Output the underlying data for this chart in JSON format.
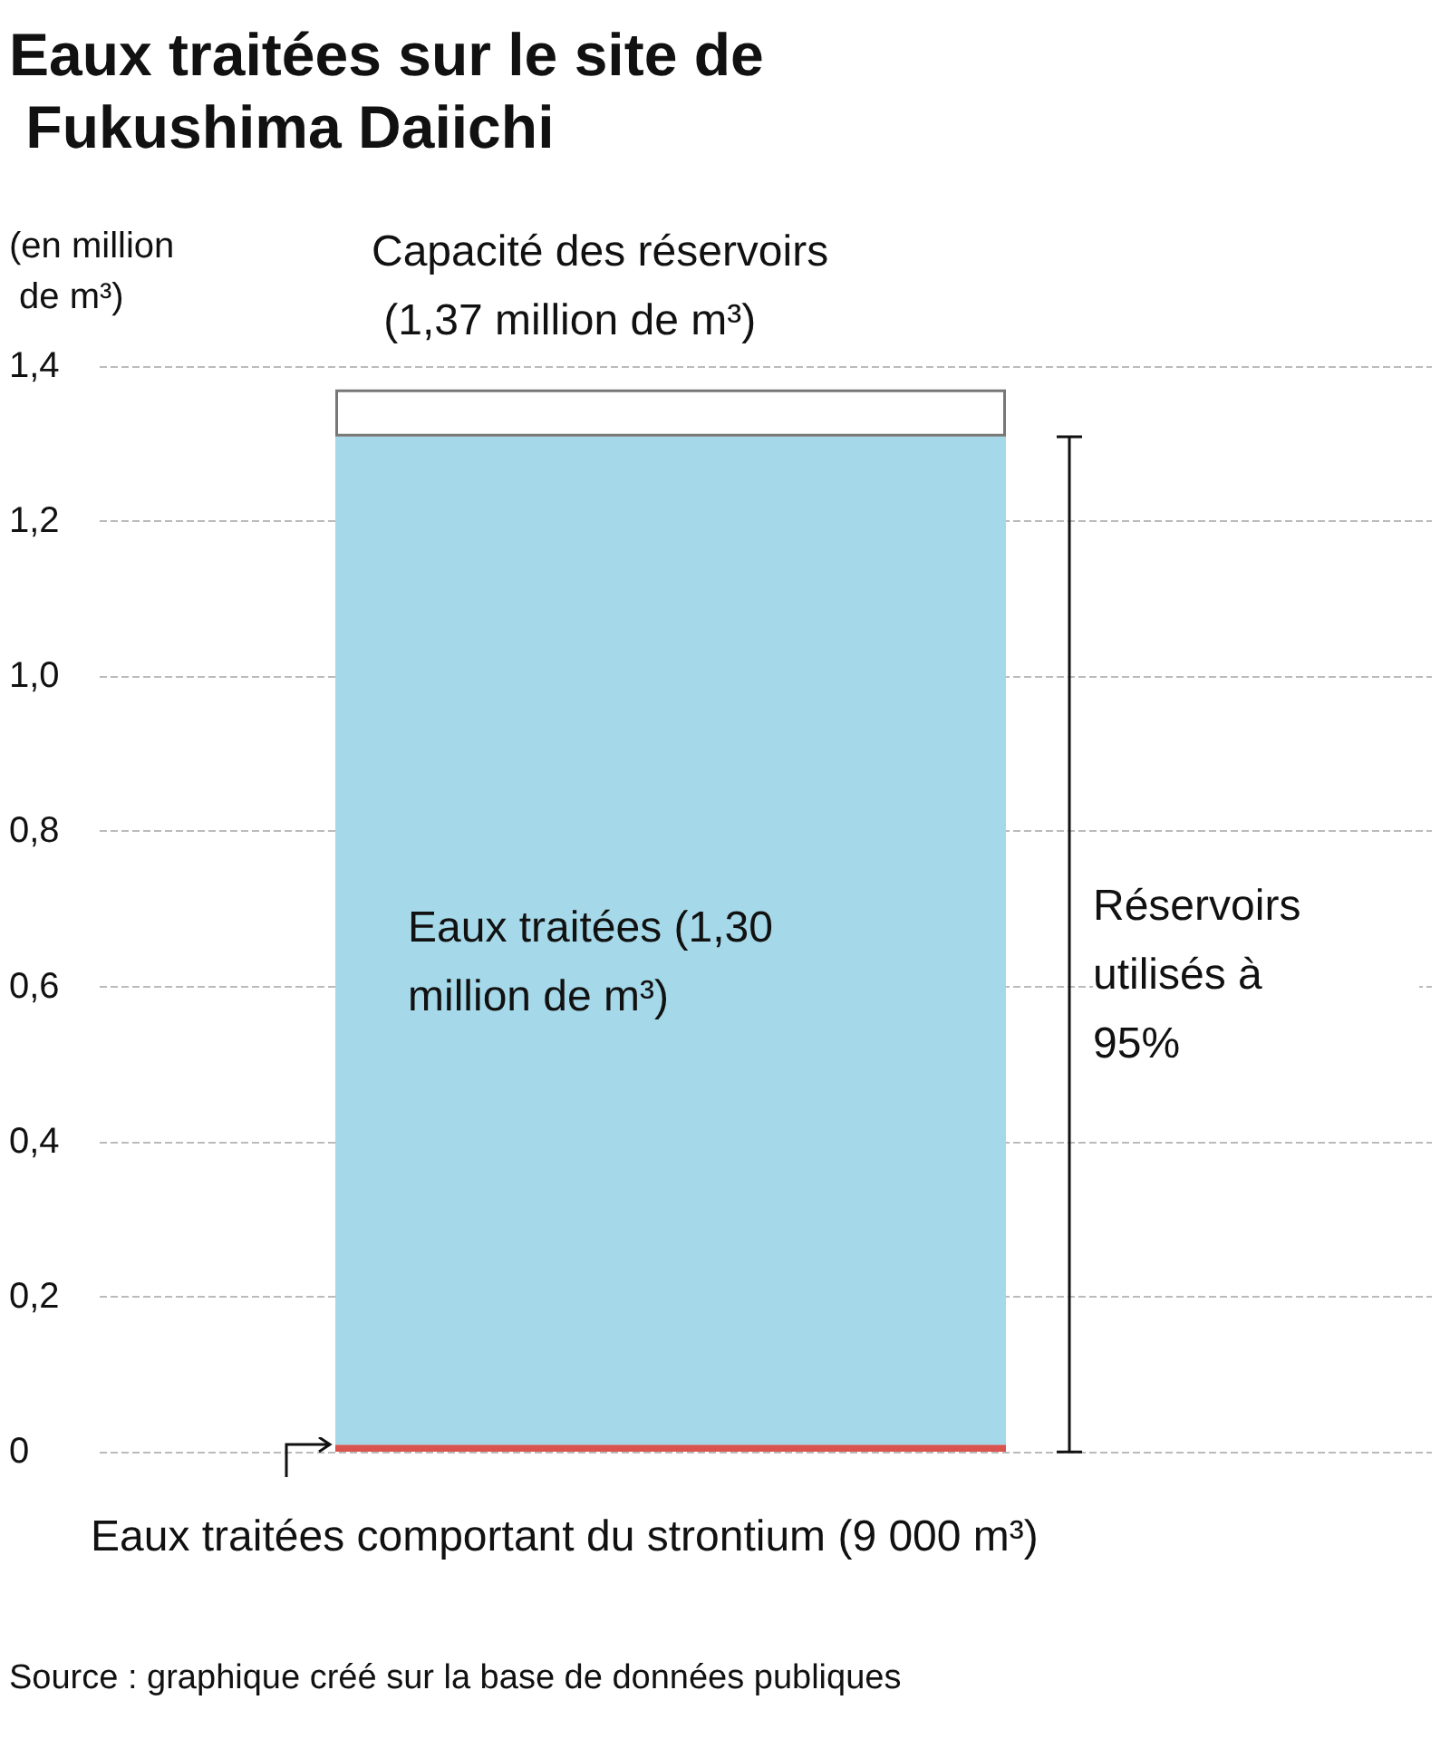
{
  "chart_data": {
    "type": "bar",
    "title": "Eaux traitées sur le site de Fukushima Daiichi",
    "ylabel": "(en million de m³)",
    "categories": [
      null
    ],
    "stacked": true,
    "series": [
      {
        "color": "#d9534f",
        "values": [
          0.009
        ]
      },
      {
        "color": "#a5d8e8",
        "values": [
          1.3
        ]
      },
      {
        "color": "#ffffff",
        "values": [
          0.061
        ]
      }
    ],
    "ylim": [
      0,
      1.4
    ],
    "yticks": [
      0,
      {
        "value": 0.2,
        "label": "0,2"
      },
      {
        "value": 0.4,
        "label": "0,4"
      },
      {
        "value": 0.6,
        "label": "0,6"
      },
      {
        "value": 0.8,
        "label": "0,8"
      },
      {
        "value": 1.0,
        "label": "1,0"
      },
      {
        "value": 1.2,
        "label": "1,2"
      },
      {
        "value": 1.4,
        "label": "1,4"
      }
    ],
    "grid": "y",
    "annotations": [
      "Capacité des réservoirs (1,37 million de m³)",
      "Eaux traitées (1,30 million de m³)",
      "Réservoirs utilisés à 95%",
      "Eaux traitées comportant du strontium (9 000 m³)",
      "Source : graphique créé sur la base de données publiques"
    ]
  }
}
